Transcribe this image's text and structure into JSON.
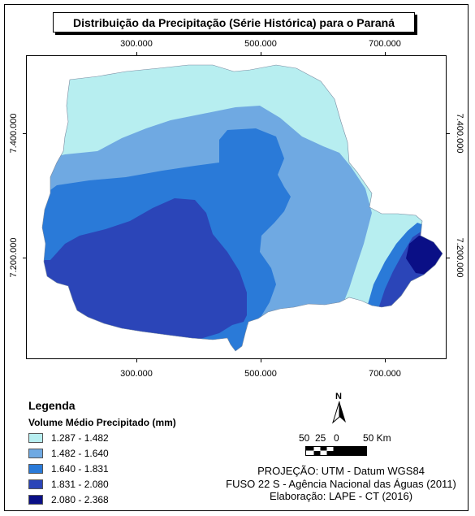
{
  "title": "Distribuição da Precipitação (Série Histórica) para o Paraná",
  "axes": {
    "x_ticks": [
      "300.000",
      "500.000",
      "700.000"
    ],
    "y_ticks": [
      "7.400.000",
      "7.200.000"
    ]
  },
  "legend": {
    "title": "Legenda",
    "subtitle": "Volume Médio Precipitado (mm)",
    "items": [
      {
        "label": "1.287 - 1.482",
        "color": "#b7eef0"
      },
      {
        "label": "1.482 - 1.640",
        "color": "#6fa9e2"
      },
      {
        "label": "1.640 - 1.831",
        "color": "#2a7ad8"
      },
      {
        "label": "1.831 - 2.080",
        "color": "#2b45b8"
      },
      {
        "label": "2.080 - 2.368",
        "color": "#0a0f86"
      }
    ]
  },
  "north_arrow": {
    "label": "N"
  },
  "scale_bar": {
    "labels": [
      "50",
      "25",
      "0",
      "50 Km"
    ]
  },
  "info": {
    "projection": "PROJEÇÃO: UTM - Datum WGS84",
    "zone_source": "FUSO 22 S - Agência Nacional das Águas (2011)",
    "credit": "Elaboração: LAPE - CT (2016)"
  }
}
